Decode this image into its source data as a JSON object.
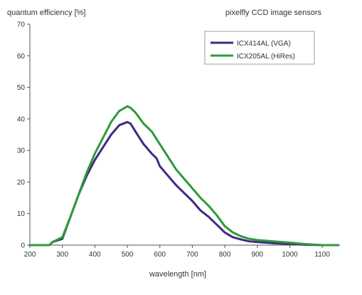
{
  "chart_data": {
    "type": "line",
    "title": "pixelfly CCD image sensors",
    "xlabel": "wavelength [nm]",
    "ylabel": "quantum efficiency [%]",
    "xlim": [
      200,
      1150
    ],
    "ylim": [
      0,
      70
    ],
    "xticks": [
      200,
      300,
      400,
      500,
      600,
      700,
      800,
      900,
      1000,
      1100
    ],
    "yticks": [
      0,
      10,
      20,
      30,
      40,
      50,
      60,
      70
    ],
    "grid": false,
    "legend_position": "top-right",
    "series": [
      {
        "name": "ICX414AL (VGA)",
        "color": "#3f2a80",
        "points": [
          [
            200,
            0
          ],
          [
            260,
            0
          ],
          [
            270,
            1
          ],
          [
            300,
            2
          ],
          [
            325,
            9
          ],
          [
            350,
            16
          ],
          [
            375,
            22
          ],
          [
            400,
            27
          ],
          [
            425,
            31
          ],
          [
            450,
            35
          ],
          [
            475,
            38
          ],
          [
            500,
            39
          ],
          [
            510,
            38.5
          ],
          [
            525,
            36
          ],
          [
            550,
            32
          ],
          [
            575,
            29
          ],
          [
            590,
            27.5
          ],
          [
            600,
            25
          ],
          [
            625,
            22
          ],
          [
            650,
            19
          ],
          [
            675,
            16.5
          ],
          [
            700,
            14
          ],
          [
            725,
            11
          ],
          [
            750,
            9
          ],
          [
            775,
            6.5
          ],
          [
            800,
            4
          ],
          [
            825,
            2.5
          ],
          [
            850,
            1.8
          ],
          [
            875,
            1.2
          ],
          [
            900,
            1
          ],
          [
            950,
            0.6
          ],
          [
            1000,
            0.4
          ],
          [
            1050,
            0.1
          ],
          [
            1100,
            0
          ],
          [
            1150,
            0
          ]
        ]
      },
      {
        "name": "ICX205AL (HiRes)",
        "color": "#2e9a3a",
        "points": [
          [
            200,
            0
          ],
          [
            260,
            0
          ],
          [
            270,
            1
          ],
          [
            300,
            2.5
          ],
          [
            325,
            9
          ],
          [
            350,
            16
          ],
          [
            375,
            23
          ],
          [
            400,
            29
          ],
          [
            425,
            34
          ],
          [
            450,
            39
          ],
          [
            475,
            42.5
          ],
          [
            500,
            44
          ],
          [
            510,
            43.5
          ],
          [
            525,
            42
          ],
          [
            550,
            38.5
          ],
          [
            575,
            36
          ],
          [
            600,
            32
          ],
          [
            625,
            28
          ],
          [
            650,
            24
          ],
          [
            675,
            21
          ],
          [
            700,
            18
          ],
          [
            725,
            15
          ],
          [
            750,
            12.5
          ],
          [
            775,
            9.5
          ],
          [
            800,
            6
          ],
          [
            825,
            4
          ],
          [
            850,
            2.8
          ],
          [
            875,
            2
          ],
          [
            900,
            1.6
          ],
          [
            950,
            1.2
          ],
          [
            1000,
            0.8
          ],
          [
            1050,
            0.3
          ],
          [
            1100,
            0
          ],
          [
            1150,
            0
          ]
        ]
      }
    ]
  }
}
